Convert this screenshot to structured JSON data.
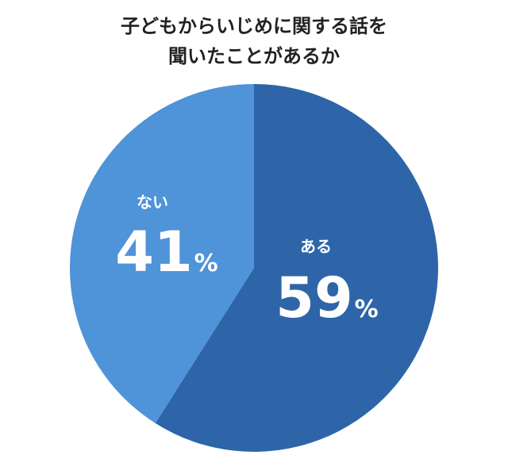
{
  "chart_data": {
    "type": "pie",
    "title_lines": [
      "子どもからいじめに関する話を",
      "聞いたことがあるか"
    ],
    "slices": [
      {
        "label": "ある",
        "value": 59,
        "display": "59",
        "unit": "%",
        "color": "#2d65a8"
      },
      {
        "label": "ない",
        "value": 41,
        "display": "41",
        "unit": "%",
        "color": "#4f93d8"
      }
    ],
    "start": "12 o'clock",
    "direction": "clockwise",
    "label_color": "#ffffff"
  }
}
